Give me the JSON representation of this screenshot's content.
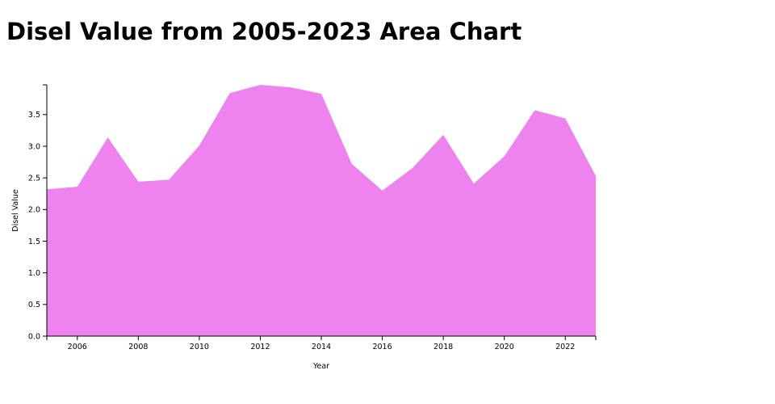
{
  "chart_data": {
    "type": "area",
    "title": "Disel Value from 2005-2023 Area Chart",
    "xlabel": "Year",
    "ylabel": "Disel Value",
    "x": [
      2005,
      2006,
      2007,
      2008,
      2009,
      2010,
      2011,
      2012,
      2013,
      2014,
      2015,
      2016,
      2017,
      2018,
      2019,
      2020,
      2021,
      2022,
      2023
    ],
    "series": [
      {
        "values": [
          2.32,
          2.36,
          3.14,
          2.44,
          2.47,
          3.01,
          3.84,
          3.97,
          3.93,
          3.83,
          2.72,
          2.3,
          2.66,
          3.18,
          2.41,
          2.84,
          3.57,
          3.44,
          2.53
        ]
      }
    ],
    "xlim": [
      2005,
      2023
    ],
    "ylim": [
      0,
      3.97
    ],
    "xticks": [
      2006,
      2008,
      2010,
      2012,
      2014,
      2016,
      2018,
      2020,
      2022
    ],
    "yticks": [
      "0.0",
      "0.5",
      "1.0",
      "1.5",
      "2.0",
      "2.5",
      "3.0",
      "3.5"
    ],
    "fill_color": "#ee82ee",
    "axis_color": "#000000",
    "grid": false,
    "legend": "none"
  }
}
